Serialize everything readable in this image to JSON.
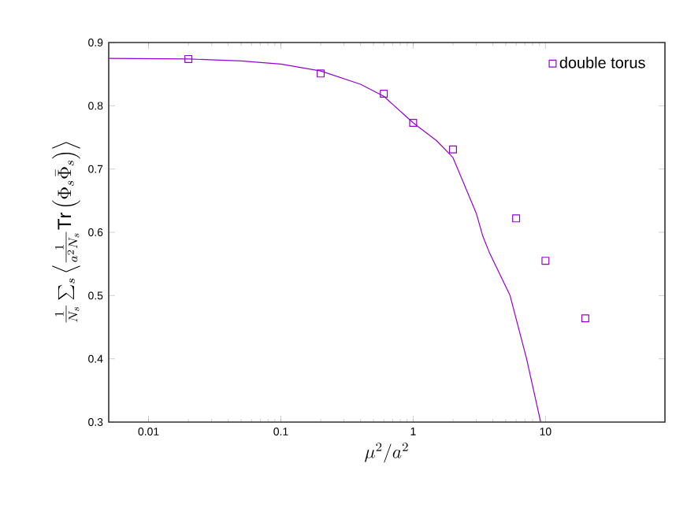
{
  "chart_data": {
    "type": "scatter",
    "xlabel": "\\mu^2/a^2",
    "ylabel": "\\frac{1}{N_s}\\sum_s\\left\\langle\\frac{1}{a^2N_s}\\mathrm{Tr}\\left(\\Phi_s\\bar{\\Phi}_s\\right)\\right\\rangle",
    "log": "x",
    "xlim": [
      0.005,
      80
    ],
    "ylim": [
      0.3,
      0.9
    ],
    "xticks": [
      0.01,
      0.1,
      1,
      10
    ],
    "yticks": [
      0.3,
      0.4,
      0.5,
      0.6,
      0.7,
      0.8,
      0.9
    ],
    "legend": "top right",
    "series": [
      {
        "name": "double torus",
        "marker": "square",
        "color": "#9400d3",
        "x": [
          0.02,
          0.2,
          0.6,
          1,
          2,
          6,
          10,
          20
        ],
        "values": [
          0.874,
          0.851,
          0.819,
          0.773,
          0.731,
          0.622,
          0.555,
          0.464
        ]
      },
      {
        "type": "line",
        "marker": "none",
        "color": "#9400d3",
        "x": [
          0.005,
          0.02,
          0.05,
          0.1,
          0.2,
          0.4,
          0.6,
          1,
          1.5,
          2,
          3,
          3.36,
          3.75,
          5.4,
          7.2,
          9.2
        ],
        "values": [
          0.875,
          0.874,
          0.871,
          0.866,
          0.855,
          0.834,
          0.815,
          0.773,
          0.745,
          0.718,
          0.63,
          0.594,
          0.569,
          0.5,
          0.4,
          0.3
        ]
      }
    ]
  }
}
